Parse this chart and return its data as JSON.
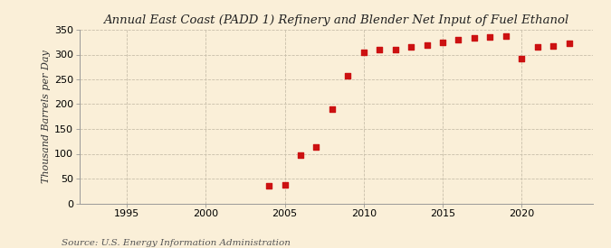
{
  "title": "Annual East Coast (PADD 1) Refinery and Blender Net Input of Fuel Ethanol",
  "ylabel": "Thousand Barrels per Day",
  "source": "Source: U.S. Energy Information Administration",
  "background_color": "#faefd8",
  "plot_bg_color": "#faefd8",
  "marker_color": "#cc1111",
  "years": [
    1993,
    1994,
    1995,
    1996,
    1997,
    1998,
    1999,
    2000,
    2001,
    2002,
    2003,
    2004,
    2005,
    2006,
    2007,
    2008,
    2009,
    2010,
    2011,
    2012,
    2013,
    2014,
    2015,
    2016,
    2017,
    2018,
    2019,
    2020,
    2021,
    2022,
    2023
  ],
  "values": [
    null,
    null,
    null,
    null,
    null,
    null,
    null,
    null,
    null,
    null,
    null,
    35,
    38,
    97,
    113,
    190,
    258,
    304,
    310,
    310,
    315,
    320,
    325,
    330,
    333,
    335,
    338,
    291,
    316,
    318,
    323
  ],
  "ylim": [
    0,
    350
  ],
  "xlim": [
    1992,
    2024.5
  ],
  "yticks": [
    0,
    50,
    100,
    150,
    200,
    250,
    300,
    350
  ],
  "xticks": [
    1995,
    2000,
    2005,
    2010,
    2015,
    2020
  ],
  "grid_color": "#c8bfaa",
  "title_fontsize": 9.5,
  "axis_fontsize": 8,
  "source_fontsize": 7.5,
  "marker_size": 14
}
